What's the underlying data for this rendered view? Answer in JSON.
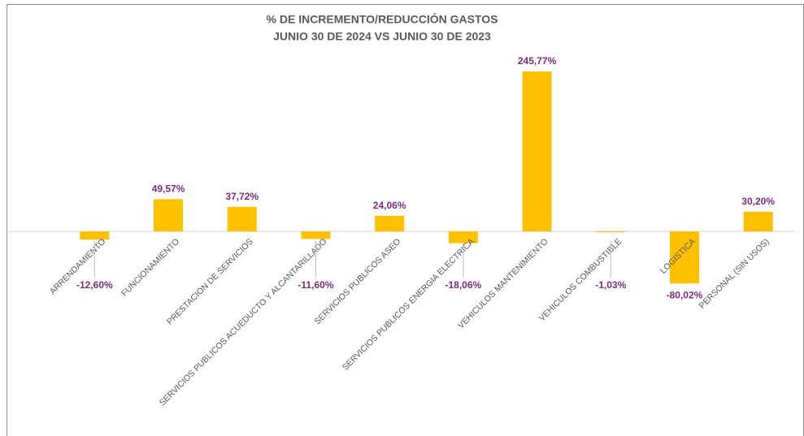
{
  "chart_data": {
    "type": "bar",
    "title": "% DE INCREMENTO/REDUCCIÓN  GASTOS",
    "subtitle": "JUNIO 30 DE 2024 VS JUNIO 30 DE 2023",
    "categories": [
      "ARRENDAMIENTO",
      "FUNCIONAMIENTO",
      "PRESTACION DE SERVICIOS",
      "SERVICIOS PUBLICOS ACUEDUCTO Y ALCANTARILLADO",
      "SERVICIOS PUBLICOS ASEO",
      "SERVICIOS PUBLICOS ENERGIA ELECTRICA",
      "VEHICULOS MANTENIMIENTO",
      "VEHICULOS COMBUSTIBLE",
      "LOGISTICA",
      "PERSONAL (SIN USOS)"
    ],
    "values": [
      -12.6,
      49.57,
      37.72,
      -11.6,
      24.06,
      -18.06,
      245.77,
      -1.03,
      -80.02,
      30.2
    ],
    "value_labels": [
      "-12,60%",
      "49,57%",
      "37,72%",
      "-11,60%",
      "24,06%",
      "-18,06%",
      "245,77%",
      "-1,03%",
      "-80,02%",
      "30,20%"
    ],
    "color": "#ffc000",
    "label_color": "#7b2c7f"
  }
}
